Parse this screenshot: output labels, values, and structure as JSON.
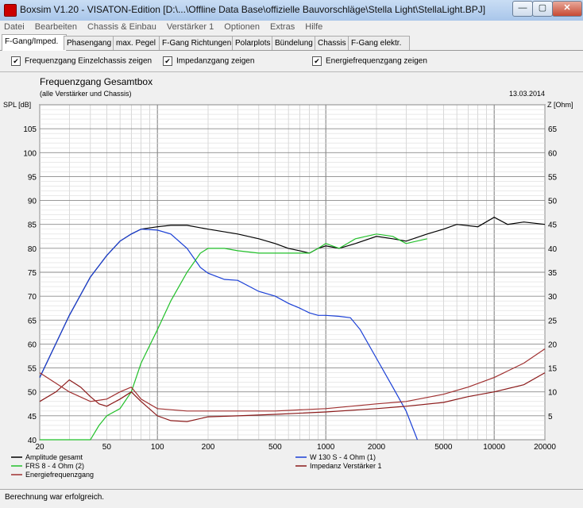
{
  "window": {
    "title": "Boxsim V1.20 - VISATON-Edition [D:\\...\\Offline Data Base\\offizielle Bauvorschläge\\Stella Light\\StellaLight.BPJ]",
    "minimize": "—",
    "maximize": "▢",
    "close": "✕"
  },
  "menu": [
    "Datei",
    "Bearbeiten",
    "Chassis & Einbau",
    "Verstärker 1",
    "Optionen",
    "Extras",
    "Hilfe"
  ],
  "tabs": [
    "F-Gang/Imped.",
    "Phasengang",
    "max. Pegel",
    "F-Gang Richtungen",
    "Polarplots",
    "Bündelung",
    "Chassis",
    "F-Gang elektr."
  ],
  "options": [
    {
      "label": "Frequenzgang Einzelchassis zeigen",
      "checked": true
    },
    {
      "label": "Impedanzgang zeigen",
      "checked": true
    },
    {
      "label": "Energiefrequenzgang zeigen",
      "checked": true
    }
  ],
  "check_mark": "✔",
  "status": "Berechnung war erfolgreich.",
  "chart_data": {
    "type": "line",
    "title": "Frequenzgang Gesamtbox",
    "subtitle": "(alle Verstärker und Chassis)",
    "date": "13.03.2014",
    "ylabel_left": "SPL [dB]",
    "ylabel_right": "Z [Ohm]",
    "xscale": "log",
    "xlim": [
      20,
      20000
    ],
    "ylim_left": [
      40,
      110
    ],
    "ylim_right": [
      0,
      70
    ],
    "x_ticks": [
      20,
      50,
      100,
      200,
      500,
      1000,
      2000,
      5000,
      10000,
      20000
    ],
    "y_ticks_left": [
      40,
      45,
      50,
      55,
      60,
      65,
      70,
      75,
      80,
      85,
      90,
      95,
      100,
      105
    ],
    "y_ticks_right": [
      5,
      10,
      15,
      20,
      25,
      30,
      35,
      40,
      45,
      50,
      55,
      60,
      65
    ],
    "grid": true,
    "legend_position": "bottom",
    "series": [
      {
        "name": "Amplitude gesamt",
        "color": "#000000",
        "axis": "left",
        "x": [
          20,
          30,
          40,
          50,
          60,
          70,
          80,
          100,
          120,
          150,
          200,
          300,
          400,
          500,
          600,
          700,
          800,
          900,
          1000,
          1200,
          1500,
          2000,
          2500,
          3000,
          4000,
          5000,
          6000,
          8000,
          10000,
          12000,
          15000,
          20000
        ],
        "y": [
          53,
          66,
          74,
          78.5,
          81.5,
          83,
          84,
          84.5,
          84.8,
          84.8,
          84,
          83,
          82,
          81,
          80,
          79.5,
          79,
          80,
          80.5,
          80,
          81,
          82.5,
          82,
          81.5,
          83,
          84,
          85,
          84.5,
          86.5,
          85,
          85.5,
          85
        ]
      },
      {
        "name": "W 130 S - 4 Ohm (1)",
        "color": "#1a3fd6",
        "axis": "left",
        "x": [
          20,
          30,
          40,
          50,
          60,
          70,
          80,
          100,
          120,
          150,
          180,
          200,
          250,
          300,
          400,
          500,
          600,
          700,
          800,
          900,
          1000,
          1200,
          1400,
          1600,
          2000,
          2500,
          3000,
          3500
        ],
        "y": [
          53,
          66,
          74,
          78.5,
          81.5,
          83,
          84,
          83.8,
          83,
          80,
          76,
          74.8,
          73.5,
          73.3,
          71,
          70,
          68.5,
          67.5,
          66.5,
          66,
          66,
          65.8,
          65.5,
          63,
          57,
          51,
          46,
          40
        ]
      },
      {
        "name": "FRS 8 - 4 Ohm (2)",
        "color": "#22c02a",
        "axis": "left",
        "x": [
          20,
          30,
          35,
          40,
          45,
          50,
          60,
          70,
          80,
          100,
          120,
          150,
          180,
          200,
          250,
          300,
          400,
          500,
          600,
          700,
          800,
          900,
          1000,
          1200,
          1500,
          2000,
          2500,
          3000,
          4000
        ],
        "y": [
          40,
          40,
          40,
          40,
          43,
          45,
          46.5,
          50,
          56,
          63,
          69,
          75,
          79,
          80,
          80,
          79.5,
          79,
          79,
          79,
          79,
          79,
          80,
          81,
          80,
          82,
          83,
          82.5,
          81,
          82
        ]
      },
      {
        "name": "Impedanz Verstärker 1",
        "color": "#8b1a1a",
        "axis": "right",
        "x": [
          20,
          25,
          30,
          35,
          40,
          45,
          50,
          60,
          70,
          80,
          100,
          120,
          150,
          200,
          300,
          500,
          1000,
          2000,
          3000,
          5000,
          7000,
          10000,
          15000,
          20000
        ],
        "y": [
          8,
          10,
          12.5,
          11,
          9,
          7.5,
          7,
          8.5,
          10,
          8,
          5,
          4,
          3.8,
          4.8,
          5,
          5.3,
          5.8,
          6.5,
          7,
          7.8,
          9,
          10,
          11.5,
          14
        ]
      },
      {
        "name": "Energiefrequenzgang",
        "color": "#a03030",
        "axis": "left",
        "x": [
          20,
          30,
          40,
          50,
          60,
          70,
          80,
          100,
          150,
          200,
          300,
          500,
          1000,
          2000,
          3000,
          5000,
          7000,
          10000,
          15000,
          20000
        ],
        "y": [
          54,
          50,
          48,
          48.5,
          50,
          51,
          48.5,
          46.5,
          46,
          46,
          46,
          46,
          46.5,
          47.5,
          48,
          49.5,
          51,
          53,
          56,
          59
        ]
      }
    ]
  }
}
